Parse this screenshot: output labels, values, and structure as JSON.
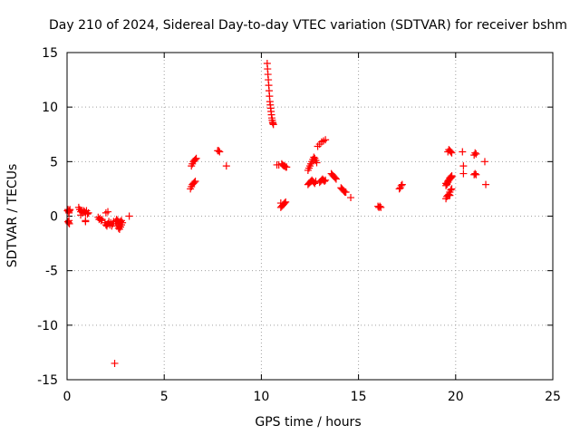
{
  "chart_data": {
    "type": "scatter",
    "title": "Day 210 of 2024, Sidereal Day-to-day VTEC variation (SDTVAR) for receiver bshm",
    "xlabel": "GPS time / hours",
    "ylabel": "SDTVAR / TECUs",
    "xlim": [
      0,
      25
    ],
    "ylim": [
      -15,
      15
    ],
    "xticks": [
      0,
      5,
      10,
      15,
      20,
      25
    ],
    "yticks": [
      -15,
      -10,
      -5,
      0,
      5,
      10,
      15
    ],
    "grid": true,
    "marker": "+",
    "marker_color": "#ff0000",
    "series": [
      {
        "name": "SDTVAR",
        "x": [
          0.02,
          0.05,
          0.08,
          0.1,
          0.12,
          0.15,
          0.05,
          0.08,
          0.1,
          0.12,
          0.6,
          0.65,
          0.7,
          0.75,
          0.8,
          0.85,
          0.9,
          0.95,
          1.0,
          1.05,
          1.1,
          0.95,
          0.95,
          0.7,
          1.6,
          1.65,
          1.7,
          1.75,
          1.8,
          1.95,
          2.0,
          2.05,
          2.1,
          2.15,
          2.2,
          2.25,
          2.3,
          2.35,
          2.4,
          2.0,
          2.1,
          2.5,
          2.55,
          2.6,
          2.65,
          2.7,
          2.75,
          2.8,
          2.85,
          2.55,
          2.6,
          2.65,
          2.7,
          2.75,
          2.8,
          2.45,
          3.2,
          6.35,
          6.4,
          6.45,
          6.5,
          6.55,
          6.6,
          6.4,
          6.45,
          6.5,
          6.55,
          6.6,
          6.65,
          7.8,
          7.85,
          7.75,
          8.2,
          10.3,
          10.32,
          10.34,
          10.36,
          10.38,
          10.4,
          10.42,
          10.44,
          10.46,
          10.48,
          10.5,
          10.52,
          10.54,
          10.56,
          10.58,
          10.6,
          10.62,
          10.8,
          10.9,
          11.0,
          11.05,
          11.1,
          11.15,
          11.2,
          11.25,
          11.3,
          11.0,
          11.05,
          11.1,
          11.15,
          11.2,
          11.25,
          12.4,
          12.45,
          12.5,
          12.55,
          12.6,
          12.65,
          12.7,
          12.75,
          12.8,
          12.85,
          12.4,
          12.45,
          12.5,
          12.55,
          12.6,
          12.65,
          12.7,
          12.75,
          12.8,
          12.9,
          13.0,
          13.1,
          13.2,
          13.3,
          13.0,
          13.05,
          13.1,
          13.15,
          13.2,
          13.25,
          13.3,
          13.6,
          13.65,
          13.7,
          13.75,
          13.8,
          13.85,
          14.1,
          14.15,
          14.2,
          14.25,
          14.3,
          14.35,
          14.6,
          16.0,
          16.05,
          16.1,
          16.15,
          17.1,
          17.15,
          17.2,
          17.25,
          19.5,
          19.55,
          19.6,
          19.65,
          19.7,
          19.75,
          19.8,
          19.5,
          19.55,
          19.6,
          19.65,
          19.7,
          19.75,
          19.8,
          19.5,
          19.55,
          19.6,
          19.65,
          19.7,
          19.75,
          19.8,
          19.6,
          19.65,
          19.7,
          19.75,
          19.8,
          19.7,
          20.35,
          20.4,
          20.4,
          20.95,
          21.0,
          21.05,
          20.95,
          21.0,
          21.05,
          21.5,
          21.55
        ],
        "y": [
          0.5,
          0.6,
          0.4,
          0.3,
          0.5,
          0.6,
          -0.5,
          -0.6,
          -0.4,
          -0.7,
          0.8,
          0.6,
          0.4,
          0.5,
          0.3,
          0.5,
          0.4,
          0.3,
          0.5,
          0.2,
          0.3,
          -0.4,
          -0.5,
          0.1,
          -0.1,
          -0.3,
          -0.2,
          -0.4,
          -0.3,
          -0.6,
          -0.8,
          -0.9,
          -0.7,
          -0.5,
          -0.8,
          -0.6,
          -0.9,
          -0.7,
          -0.5,
          0.3,
          0.4,
          -0.5,
          -0.7,
          -0.9,
          -1.1,
          -1.2,
          -1.0,
          -0.8,
          -0.6,
          -0.3,
          -0.4,
          -0.5,
          -0.6,
          -0.5,
          -0.4,
          -13.5,
          0.0,
          2.5,
          2.7,
          2.9,
          3.0,
          3.1,
          3.2,
          4.6,
          4.8,
          5.0,
          5.1,
          5.2,
          5.3,
          6.0,
          5.9,
          6.0,
          4.6,
          14.0,
          13.5,
          13.0,
          12.5,
          12.0,
          11.5,
          11.0,
          10.5,
          10.2,
          9.9,
          9.6,
          9.3,
          9.0,
          8.8,
          8.6,
          8.5,
          8.4,
          4.7,
          4.7,
          1.2,
          4.8,
          4.7,
          4.6,
          4.6,
          4.5,
          4.5,
          0.8,
          0.9,
          1.0,
          1.1,
          1.2,
          1.3,
          4.2,
          4.4,
          4.6,
          4.8,
          5.0,
          5.2,
          5.4,
          5.3,
          5.1,
          4.9,
          2.9,
          3.0,
          3.1,
          3.2,
          3.3,
          3.2,
          3.1,
          3.0,
          3.2,
          6.4,
          6.6,
          6.8,
          6.9,
          7.0,
          3.1,
          3.2,
          3.3,
          3.4,
          3.3,
          3.2,
          3.3,
          3.9,
          3.8,
          3.7,
          3.6,
          3.5,
          3.4,
          2.6,
          2.5,
          2.4,
          2.3,
          2.2,
          2.2,
          1.7,
          0.9,
          0.8,
          0.9,
          0.8,
          2.5,
          2.6,
          2.8,
          2.9,
          1.6,
          1.8,
          1.9,
          2.0,
          2.2,
          2.4,
          2.5,
          2.8,
          3.0,
          3.2,
          3.3,
          3.5,
          3.6,
          3.7,
          3.0,
          2.9,
          3.1,
          3.3,
          3.4,
          3.5,
          3.6,
          5.9,
          6.1,
          6.0,
          5.9,
          5.8,
          1.9,
          5.9,
          4.6,
          3.9,
          5.6,
          5.8,
          5.7,
          3.8,
          3.9,
          3.8,
          5.0,
          2.9
        ]
      }
    ]
  }
}
